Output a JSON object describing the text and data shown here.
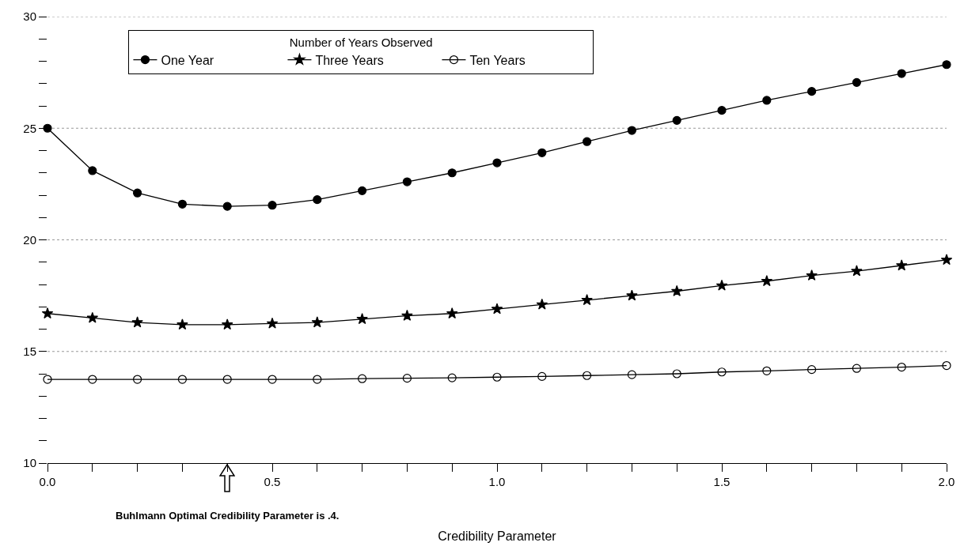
{
  "chart_data": {
    "type": "line",
    "xlabel": "Credibility Parameter",
    "legend_title": "Number of Years Observed",
    "x": [
      0,
      0.1,
      0.2,
      0.3,
      0.4,
      0.5,
      0.6,
      0.7,
      0.8,
      0.9,
      1.0,
      1.1,
      1.2,
      1.3,
      1.4,
      1.5,
      1.6,
      1.7,
      1.8,
      1.9,
      2.0
    ],
    "series": [
      {
        "name": "One Year",
        "color": "#000000",
        "marker": "circle",
        "values": [
          25.0,
          23.1,
          22.1,
          21.6,
          21.5,
          21.55,
          21.8,
          22.2,
          22.6,
          23.0,
          23.45,
          23.9,
          24.4,
          24.9,
          25.35,
          25.8,
          26.25,
          26.65,
          27.05,
          27.45,
          27.85
        ]
      },
      {
        "name": "Three Years",
        "color": "#000000",
        "marker": "star",
        "values": [
          16.7,
          16.5,
          16.3,
          16.2,
          16.2,
          16.25,
          16.3,
          16.45,
          16.6,
          16.7,
          16.9,
          17.1,
          17.3,
          17.5,
          17.7,
          17.95,
          18.15,
          18.4,
          18.6,
          18.85,
          19.1
        ]
      },
      {
        "name": "Ten Years",
        "color": "#000000",
        "marker": "circle-open",
        "values": [
          13.75,
          13.75,
          13.75,
          13.75,
          13.75,
          13.75,
          13.75,
          13.78,
          13.8,
          13.82,
          13.85,
          13.88,
          13.92,
          13.96,
          14.0,
          14.08,
          14.13,
          14.19,
          14.24,
          14.3,
          14.37
        ]
      }
    ],
    "xlim": [
      0,
      2
    ],
    "xticks": [
      {
        "value": 0,
        "label": "0.0"
      },
      {
        "value": 0.1,
        "label": null
      },
      {
        "value": 0.2,
        "label": null
      },
      {
        "value": 0.3,
        "label": null
      },
      {
        "value": 0.4,
        "label": null
      },
      {
        "value": 0.5,
        "label": "0.5"
      },
      {
        "value": 0.6,
        "label": null
      },
      {
        "value": 0.7,
        "label": null
      },
      {
        "value": 0.8,
        "label": null
      },
      {
        "value": 0.9,
        "label": null
      },
      {
        "value": 1,
        "label": "1.0"
      },
      {
        "value": 1.1,
        "label": null
      },
      {
        "value": 1.2,
        "label": null
      },
      {
        "value": 1.3,
        "label": null
      },
      {
        "value": 1.4,
        "label": null
      },
      {
        "value": 1.5,
        "label": "1.5"
      },
      {
        "value": 1.6,
        "label": null
      },
      {
        "value": 1.7,
        "label": null
      },
      {
        "value": 1.8,
        "label": null
      },
      {
        "value": 1.9,
        "label": null
      },
      {
        "value": 2,
        "label": "2.0"
      }
    ],
    "ylim": [
      10,
      30
    ],
    "yticks": [
      10,
      {
        "value": 11,
        "label": null
      },
      {
        "value": 12,
        "label": null
      },
      {
        "value": 13,
        "label": null
      },
      {
        "value": 14,
        "label": null
      },
      15,
      {
        "value": 16,
        "label": null
      },
      {
        "value": 17,
        "label": null
      },
      {
        "value": 18,
        "label": null
      },
      {
        "value": 19,
        "label": null
      },
      20,
      {
        "value": 21,
        "label": null
      },
      {
        "value": 22,
        "label": null
      },
      {
        "value": 23,
        "label": null
      },
      {
        "value": 24,
        "label": null
      },
      25,
      {
        "value": 26,
        "label": null
      },
      {
        "value": 27,
        "label": null
      },
      {
        "value": 28,
        "label": null
      },
      {
        "value": 29,
        "label": null
      },
      30
    ],
    "grid": "y",
    "legend": "top left",
    "line_style": "solid",
    "annotations": [
      "Buhlmann Optimal Credibility Parameter is .4."
    ]
  }
}
